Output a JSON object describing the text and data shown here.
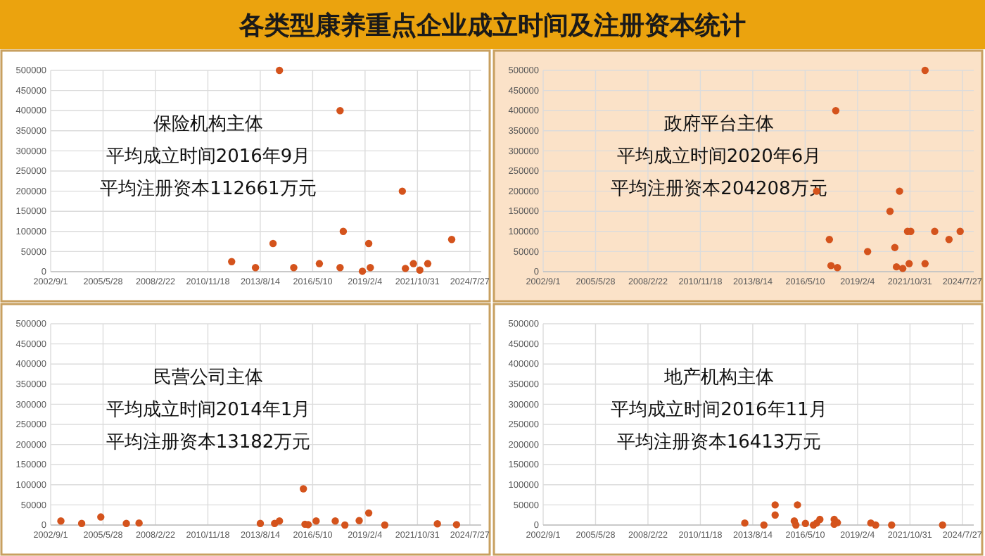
{
  "chart_data": [
    {
      "type": "scatter",
      "title": "各类型康养重点企业成立时间及注册资本统计",
      "annotations": [
        "保险机构主体",
        "平均成立时间2016年9月",
        "平均注册资本112661万元"
      ],
      "x": [
        "2012-02",
        "2013-05",
        "2014-04",
        "2014-08",
        "2015-05",
        "2016-09",
        "2017-10",
        "2017-10",
        "2017-12",
        "2018-12",
        "2019-04",
        "2019-05",
        "2021-01",
        "2021-02",
        "2021-03",
        "2021-08",
        "2021-12",
        "2022-05",
        "2023-08"
      ],
      "values": [
        25000,
        10000,
        70000,
        500000,
        10000,
        20000,
        400000,
        10000,
        100000,
        1000,
        70000,
        10000,
        200000,
        null,
        8000,
        20000,
        4000,
        20000,
        80000
      ],
      "color": "#d4531c",
      "marker": "circle",
      "grid": true,
      "xlim": [
        "2002-09-01",
        "2025-03-01"
      ],
      "xticks": [
        {
          "value": "2002-09-01",
          "label": "2002/9/1"
        },
        {
          "value": "2005-05-28",
          "label": "2005/5/28"
        },
        {
          "value": "2008-02-22",
          "label": "2008/2/22"
        },
        {
          "value": "2010-11-18",
          "label": "2010/11/18"
        },
        {
          "value": "2013-08-14",
          "label": "2013/8/14"
        },
        {
          "value": "2016-05-10",
          "label": "2016/5/10"
        },
        {
          "value": "2019-02-04",
          "label": "2019/2/4"
        },
        {
          "value": "2021-10-31",
          "label": "2021/10/31"
        },
        {
          "value": "2024-07-27",
          "label": "2024/7/27"
        }
      ],
      "ylim": [
        0,
        500000
      ],
      "yticks": [
        0,
        50000,
        100000,
        150000,
        200000,
        250000,
        300000,
        350000,
        400000,
        450000,
        500000
      ]
    },
    {
      "type": "scatter",
      "annotations": [
        "政府平台主体",
        "平均成立时间2020年6月",
        "平均注册资本204208万元"
      ],
      "x": [
        "2016-12",
        "2017-08",
        "2017-09",
        "2017-12",
        "2018-01",
        "2019-08",
        "2020-10",
        "2021-01",
        "2021-02",
        "2021-04",
        "2021-06",
        "2021-09",
        "2021-11",
        "2021-10",
        "2022-08",
        "2022-08",
        "2023-02",
        "2023-11",
        "2024-06"
      ],
      "values": [
        200000,
        80000,
        15000,
        400000,
        10000,
        50000,
        150000,
        60000,
        12000,
        200000,
        8000,
        100000,
        100000,
        20000,
        20000,
        500000,
        100000,
        80000,
        100000
      ],
      "color": "#d4531c",
      "marker": "circle",
      "grid": true,
      "xlim": [
        "2002-09-01",
        "2025-03-01"
      ],
      "xticks": [
        {
          "value": "2002-09-01",
          "label": "2002/9/1"
        },
        {
          "value": "2005-05-28",
          "label": "2005/5/28"
        },
        {
          "value": "2008-02-22",
          "label": "2008/2/22"
        },
        {
          "value": "2010-11-18",
          "label": "2010/11/18"
        },
        {
          "value": "2013-08-14",
          "label": "2013/8/14"
        },
        {
          "value": "2016-05-10",
          "label": "2016/5/10"
        },
        {
          "value": "2019-02-04",
          "label": "2019/2/4"
        },
        {
          "value": "2021-10-31",
          "label": "2021/10/31"
        },
        {
          "value": "2024-07-27",
          "label": "2024/7/27"
        }
      ],
      "ylim": [
        0,
        500000
      ],
      "yticks": [
        0,
        50000,
        100000,
        150000,
        200000,
        250000,
        300000,
        350000,
        400000,
        450000,
        500000
      ]
    },
    {
      "type": "scatter",
      "annotations": [
        "民营公司主体",
        "平均成立时间2014年1月",
        "平均注册资本13182万元"
      ],
      "x": [
        "2003-03",
        "2004-04",
        "2005-04",
        "2006-08",
        "2007-04",
        "2013-08",
        "2014-05",
        "2014-08",
        "2015-11",
        "2015-12",
        "2016-02",
        "2016-07",
        "2017-07",
        "2018-01",
        "2018-10",
        "2019-04",
        "2020-02",
        "2022-11",
        "2023-11"
      ],
      "values": [
        10000,
        4000,
        20000,
        4000,
        5000,
        4000,
        4000,
        10000,
        90000,
        2000,
        1000,
        10000,
        10000,
        0,
        11000,
        30000,
        0,
        3000,
        1000
      ],
      "color": "#d4531c",
      "marker": "circle",
      "grid": true,
      "xlim": [
        "2002-09-01",
        "2025-03-01"
      ],
      "xticks": [
        {
          "value": "2002-09-01",
          "label": "2002/9/1"
        },
        {
          "value": "2005-05-28",
          "label": "2005/5/28"
        },
        {
          "value": "2008-02-22",
          "label": "2008/2/22"
        },
        {
          "value": "2010-11-18",
          "label": "2010/11/18"
        },
        {
          "value": "2013-08-14",
          "label": "2013/8/14"
        },
        {
          "value": "2016-05-10",
          "label": "2016/5/10"
        },
        {
          "value": "2019-02-04",
          "label": "2019/2/4"
        },
        {
          "value": "2021-10-31",
          "label": "2021/10/31"
        },
        {
          "value": "2024-07-27",
          "label": "2024/7/27"
        }
      ],
      "ylim": [
        0,
        500000
      ],
      "yticks": [
        0,
        50000,
        100000,
        150000,
        200000,
        250000,
        300000,
        350000,
        400000,
        450000,
        500000
      ]
    },
    {
      "type": "scatter",
      "annotations": [
        "地产机构主体",
        "平均成立时间2016年11月",
        "平均注册资本16413万元"
      ],
      "x": [
        "2013-03",
        "2014-03",
        "2014-10",
        "2014-10",
        "2015-10",
        "2015-11",
        "2015-12",
        "2016-05",
        "2016-10",
        "2016-12",
        "2017-02",
        "2017-11",
        "2017-11",
        "2018-01",
        "2019-10",
        "2020-01",
        "2020-11",
        "2023-07"
      ],
      "values": [
        5000,
        0,
        50000,
        25000,
        10000,
        0,
        50000,
        4000,
        0,
        5000,
        14000,
        14000,
        2000,
        6000,
        5000,
        0,
        0,
        0
      ],
      "color": "#d4531c",
      "marker": "circle",
      "grid": true,
      "xlim": [
        "2002-09-01",
        "2025-03-01"
      ],
      "xticks": [
        {
          "value": "2002-09-01",
          "label": "2002/9/1"
        },
        {
          "value": "2005-05-28",
          "label": "2005/5/28"
        },
        {
          "value": "2008-02-22",
          "label": "2008/2/22"
        },
        {
          "value": "2010-11-18",
          "label": "2010/11/18"
        },
        {
          "value": "2013-08-14",
          "label": "2013/8/14"
        },
        {
          "value": "2016-05-10",
          "label": "2016/5/10"
        },
        {
          "value": "2019-02-04",
          "label": "2019/2/4"
        },
        {
          "value": "2021-10-31",
          "label": "2021/10/31"
        },
        {
          "value": "2024-07-27",
          "label": "2024/7/27"
        }
      ],
      "ylim": [
        0,
        500000
      ],
      "yticks": [
        0,
        50000,
        100000,
        150000,
        200000,
        250000,
        300000,
        350000,
        400000,
        450000,
        500000
      ]
    }
  ]
}
